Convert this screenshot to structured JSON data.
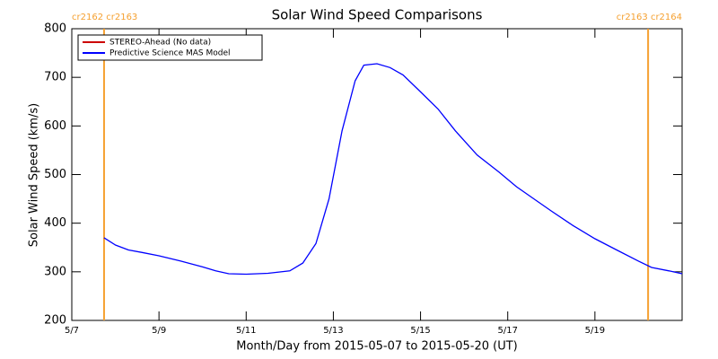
{
  "chart_data": {
    "type": "line",
    "title": "Solar Wind Speed Comparisons",
    "x_label": "Month/Day from 2015-05-07 to 2015-05-20 (UT)",
    "y_label": "Solar Wind Speed (km/s)",
    "x": [
      7.74,
      8.0,
      8.3,
      8.6,
      9.0,
      9.5,
      10.0,
      10.3,
      10.6,
      11.0,
      11.5,
      12.0,
      12.3,
      12.6,
      12.9,
      13.2,
      13.5,
      13.7,
      14.0,
      14.3,
      14.6,
      15.0,
      15.4,
      15.8,
      16.3,
      16.8,
      17.2,
      17.6,
      18.0,
      18.5,
      19.0,
      19.5,
      20.0,
      20.3,
      20.7,
      21.0
    ],
    "series": [
      {
        "name": "STEREO-Ahead (No data)",
        "color": "#cc0000",
        "values": [
          null,
          null,
          null,
          null,
          null,
          null,
          null,
          null,
          null,
          null,
          null,
          null,
          null,
          null,
          null,
          null,
          null,
          null,
          null,
          null,
          null,
          null,
          null,
          null,
          null,
          null,
          null,
          null,
          null,
          null,
          null,
          null,
          null,
          null,
          null,
          null
        ]
      },
      {
        "name": "Predictive Science MAS Model",
        "color": "#0000ff",
        "values": [
          370,
          355,
          345,
          340,
          333,
          322,
          310,
          302,
          296,
          295,
          297,
          302,
          318,
          358,
          450,
          590,
          693,
          725,
          728,
          720,
          705,
          670,
          635,
          590,
          540,
          505,
          475,
          450,
          425,
          395,
          368,
          345,
          322,
          309,
          302,
          296
        ]
      }
    ],
    "xlim": [
      7,
      21
    ],
    "xticks": [
      {
        "value": 7,
        "label": "5/7"
      },
      {
        "value": 9,
        "label": "5/9"
      },
      {
        "value": 11,
        "label": "5/11"
      },
      {
        "value": 13,
        "label": "5/13"
      },
      {
        "value": 15,
        "label": "5/15"
      },
      {
        "value": 17,
        "label": "5/17"
      },
      {
        "value": 19,
        "label": "5/19"
      }
    ],
    "ylim": [
      200,
      800
    ],
    "yticks": [
      200,
      300,
      400,
      500,
      600,
      700,
      800
    ],
    "vlines": [
      {
        "x": 7.74,
        "label": "cr2162 cr2163"
      },
      {
        "x": 20.22,
        "label": "cr2163 cr2164"
      }
    ],
    "vline_color": "#f5a030",
    "legend": "upper left"
  }
}
